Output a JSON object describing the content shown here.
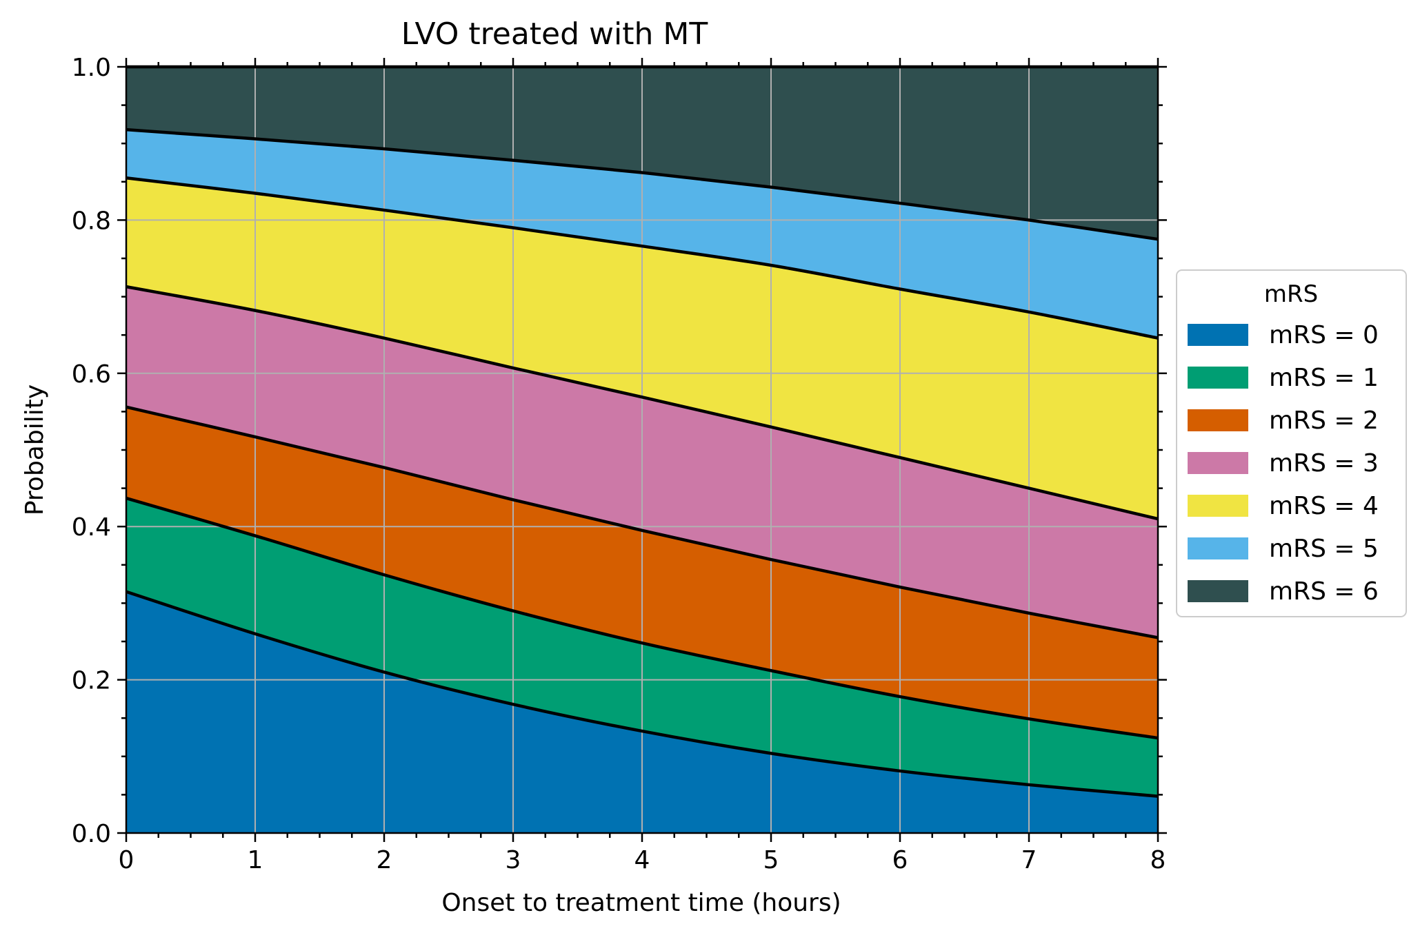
{
  "chart_data": {
    "type": "area",
    "title": "LVO treated with MT",
    "xlabel": "Onset to treatment time (hours)",
    "ylabel": "Probability",
    "xlim": [
      0,
      8
    ],
    "ylim": [
      0,
      1.0
    ],
    "xticks": [
      0,
      1,
      2,
      3,
      4,
      5,
      6,
      7,
      8
    ],
    "yticks": [
      0.0,
      0.2,
      0.4,
      0.6,
      0.8,
      1.0
    ],
    "xtick_labels": [
      "0",
      "1",
      "2",
      "3",
      "4",
      "5",
      "6",
      "7",
      "8"
    ],
    "ytick_labels": [
      "0.0",
      "0.2",
      "0.4",
      "0.6",
      "0.8",
      "1.0"
    ],
    "grid": true,
    "stacked": true,
    "x": [
      0,
      1,
      2,
      3,
      4,
      5,
      6,
      7,
      8
    ],
    "cumulative_boundaries": [
      [
        0.315,
        0.26,
        0.21,
        0.168,
        0.133,
        0.104,
        0.081,
        0.063,
        0.048
      ],
      [
        0.437,
        0.388,
        0.337,
        0.29,
        0.248,
        0.212,
        0.178,
        0.149,
        0.124
      ],
      [
        0.556,
        0.517,
        0.477,
        0.435,
        0.395,
        0.357,
        0.321,
        0.287,
        0.255
      ],
      [
        0.713,
        0.682,
        0.646,
        0.607,
        0.569,
        0.53,
        0.49,
        0.45,
        0.41
      ],
      [
        0.855,
        0.835,
        0.813,
        0.79,
        0.766,
        0.741,
        0.71,
        0.68,
        0.646
      ],
      [
        0.918,
        0.906,
        0.893,
        0.878,
        0.862,
        0.843,
        0.822,
        0.8,
        0.775
      ],
      [
        1.0,
        1.0,
        1.0,
        1.0,
        1.0,
        1.0,
        1.0,
        1.0,
        1.0
      ]
    ],
    "series": [
      {
        "name": "mRS = 0",
        "color": "#0072B2",
        "values": [
          0.315,
          0.26,
          0.21,
          0.168,
          0.133,
          0.104,
          0.081,
          0.063,
          0.048
        ]
      },
      {
        "name": "mRS = 1",
        "color": "#009E73",
        "values": [
          0.122,
          0.128,
          0.127,
          0.122,
          0.115,
          0.108,
          0.097,
          0.086,
          0.076
        ]
      },
      {
        "name": "mRS = 2",
        "color": "#D55E00",
        "values": [
          0.119,
          0.129,
          0.14,
          0.145,
          0.147,
          0.145,
          0.143,
          0.138,
          0.131
        ]
      },
      {
        "name": "mRS = 3",
        "color": "#CC79A7",
        "values": [
          0.157,
          0.165,
          0.169,
          0.172,
          0.174,
          0.173,
          0.169,
          0.163,
          0.155
        ]
      },
      {
        "name": "mRS = 4",
        "color": "#F0E442",
        "values": [
          0.142,
          0.153,
          0.167,
          0.183,
          0.197,
          0.211,
          0.22,
          0.23,
          0.236
        ]
      },
      {
        "name": "mRS = 5",
        "color": "#56B4E9",
        "values": [
          0.063,
          0.071,
          0.08,
          0.088,
          0.096,
          0.102,
          0.112,
          0.12,
          0.129
        ]
      },
      {
        "name": "mRS = 6",
        "color": "#2F4F4F",
        "values": [
          0.082,
          0.094,
          0.107,
          0.122,
          0.138,
          0.157,
          0.178,
          0.2,
          0.225
        ]
      }
    ],
    "legend": {
      "title": "mRS",
      "placement": "center-right, outside plot"
    }
  }
}
